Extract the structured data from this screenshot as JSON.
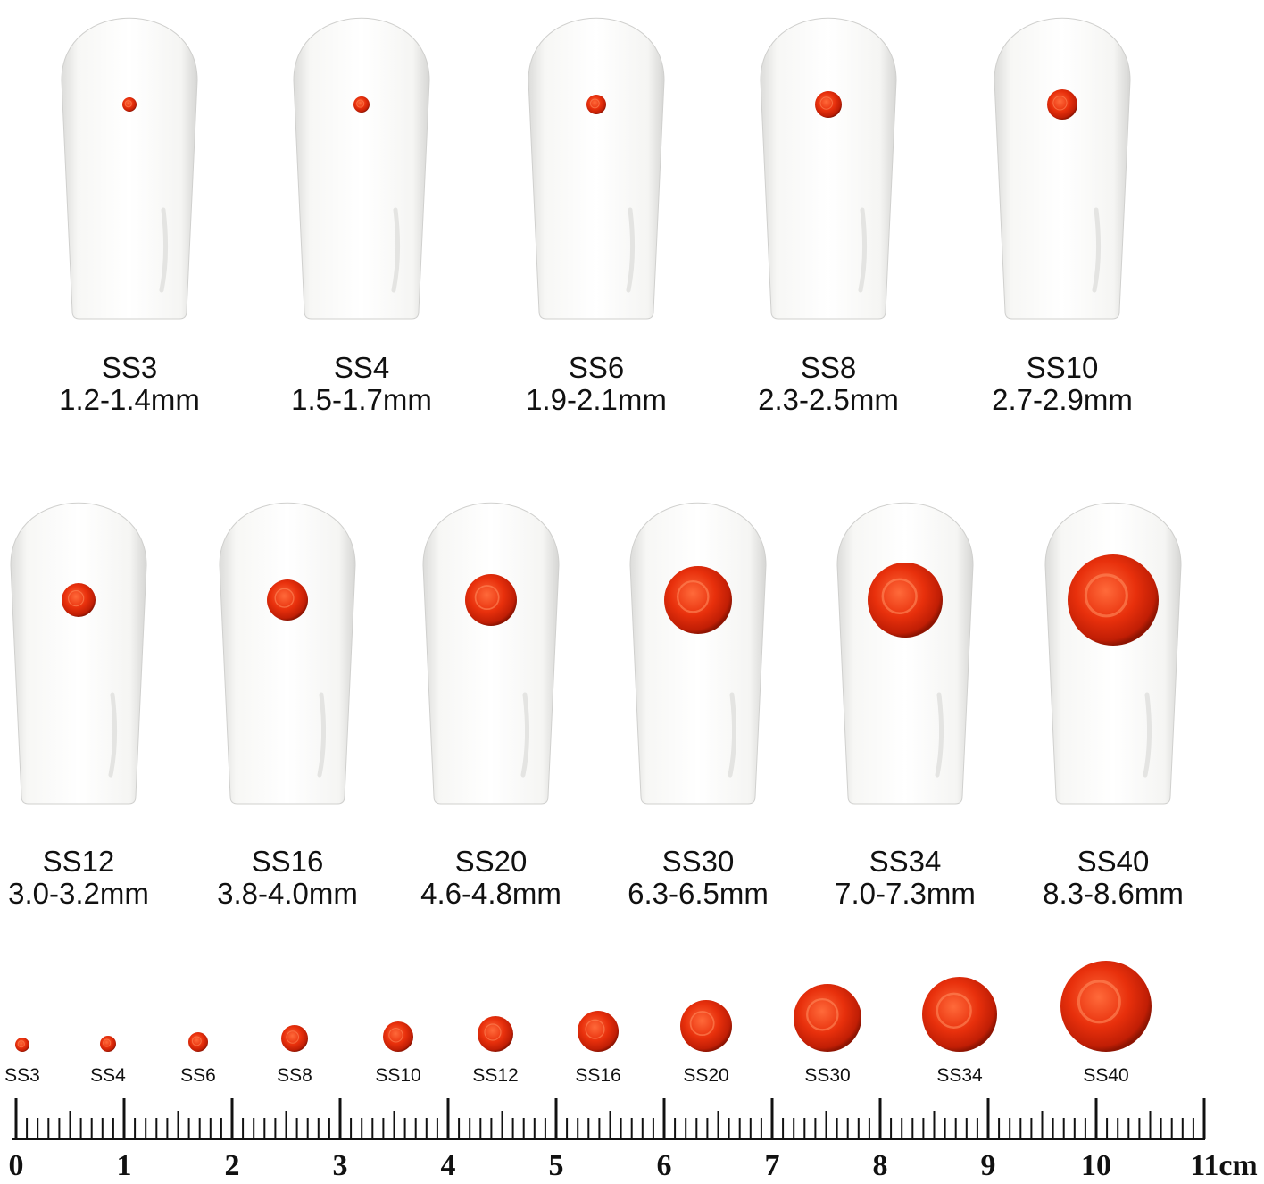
{
  "nail_rows": [
    [
      {
        "size": "SS3",
        "mm": "1.2-1.4mm"
      },
      {
        "size": "SS4",
        "mm": "1.5-1.7mm"
      },
      {
        "size": "SS6",
        "mm": "1.9-2.1mm"
      },
      {
        "size": "SS8",
        "mm": "2.3-2.5mm"
      },
      {
        "size": "SS10",
        "mm": "2.7-2.9mm"
      }
    ],
    [
      {
        "size": "SS12",
        "mm": "3.0-3.2mm"
      },
      {
        "size": "SS16",
        "mm": "3.8-4.0mm"
      },
      {
        "size": "SS20",
        "mm": "4.6-4.8mm"
      },
      {
        "size": "SS30",
        "mm": "6.3-6.5mm"
      },
      {
        "size": "SS34",
        "mm": "7.0-7.3mm"
      },
      {
        "size": "SS40",
        "mm": "8.3-8.6mm"
      }
    ]
  ],
  "gem_strip": [
    "SS3",
    "SS4",
    "SS6",
    "SS8",
    "SS10",
    "SS12",
    "SS16",
    "SS20",
    "SS30",
    "SS34",
    "SS40"
  ],
  "ruler": [
    "0",
    "1",
    "2",
    "3",
    "4",
    "5",
    "6",
    "7",
    "8",
    "9",
    "10",
    "11cm"
  ]
}
